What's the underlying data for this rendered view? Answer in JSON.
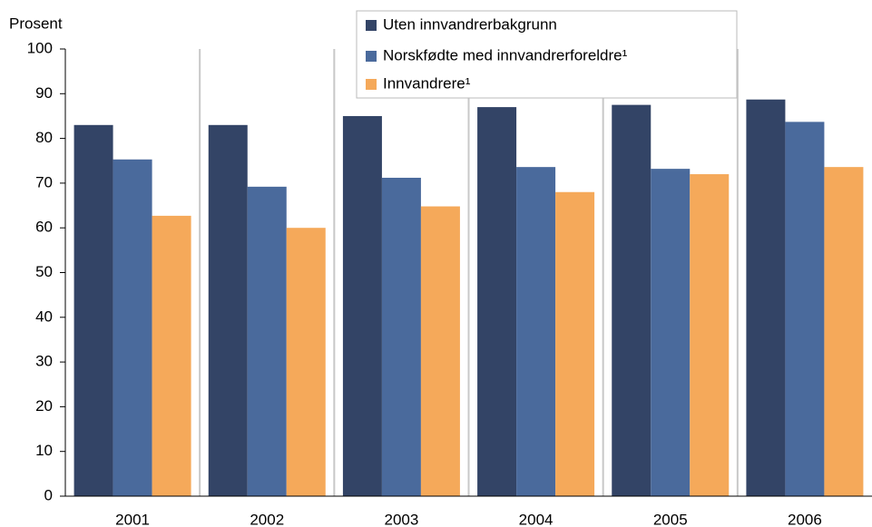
{
  "chart_data": {
    "type": "bar",
    "y_label": "Prosent",
    "categories": [
      "2001",
      "2002",
      "2003",
      "2004",
      "2005",
      "2006"
    ],
    "series": [
      {
        "name": "Uten innvandrerbakgrunn",
        "color": "#334466",
        "values": [
          83,
          83,
          85,
          87,
          87.5,
          88.7
        ]
      },
      {
        "name": "Norskfødte med innvandrerforeldre¹",
        "color": "#4a6a9c",
        "values": [
          75.3,
          69.2,
          71.2,
          73.6,
          73.2,
          83.7
        ]
      },
      {
        "name": "Innvandrere¹",
        "color": "#f5a95a",
        "values": [
          62.7,
          60,
          64.8,
          68,
          72,
          73.6
        ]
      }
    ],
    "ylim": [
      0,
      100
    ],
    "yticks": [
      0,
      10,
      20,
      30,
      40,
      50,
      60,
      70,
      80,
      90,
      100
    ],
    "grid": true,
    "legend": "top"
  }
}
